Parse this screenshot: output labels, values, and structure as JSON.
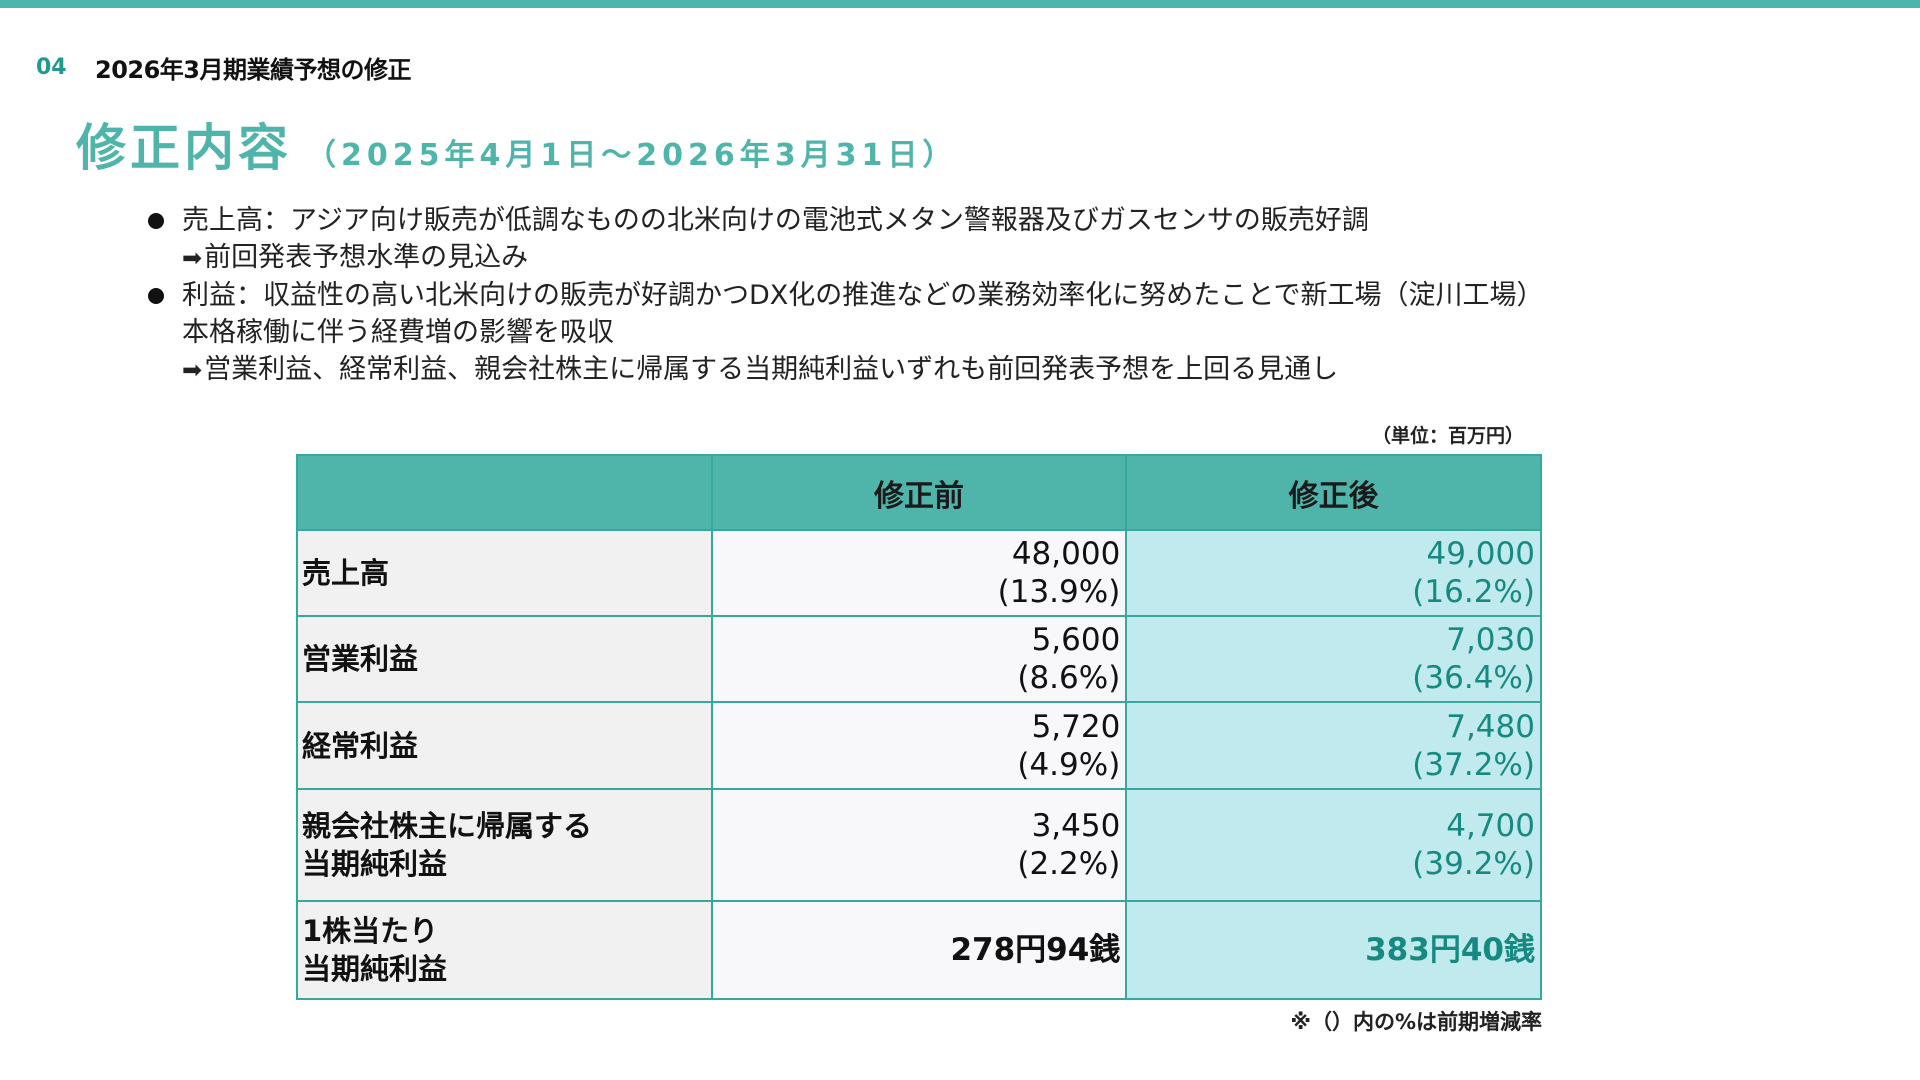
{
  "theme": {
    "accent": "#4db6ac",
    "accent_text": "#1f9a8f",
    "revised_bg": "#c0eaee",
    "revised_text": "#168a80"
  },
  "section": {
    "number": "04",
    "title": "2026年3月期業績予想の修正"
  },
  "heading": {
    "main": "修正内容",
    "period": "（2025年4月1日～2026年3月31日）"
  },
  "bullets": [
    {
      "icon": "bullet-dot",
      "lines": [
        "売上高：アジア向け販売が低調なものの北米向けの電池式メタン警報器及びガスセンサの販売好調"
      ],
      "result_arrow": "➡",
      "result": "前回発表予想水準の見込み"
    },
    {
      "icon": "bullet-dot",
      "lines": [
        "利益：収益性の高い北米向けの販売が好調かつDX化の推進などの業務効率化に努めたことで新工場（淀川工場）",
        "本格稼働に伴う経費増の影響を吸収"
      ],
      "result_arrow": "➡",
      "result": "営業利益、経常利益、親会社株主に帰属する当期純利益いずれも前回発表予想を上回る見通し"
    }
  ],
  "table": {
    "unit": "（単位：百万円）",
    "headers": [
      "",
      "修正前",
      "修正後"
    ],
    "rows": [
      {
        "label": [
          "売上高"
        ],
        "before": {
          "value": "48,000",
          "change": "(13.9%)"
        },
        "after": {
          "value": "49,000",
          "change": "(16.2%)"
        }
      },
      {
        "label": [
          "営業利益"
        ],
        "before": {
          "value": "5,600",
          "change": "(8.6%)"
        },
        "after": {
          "value": "7,030",
          "change": "(36.4%)"
        }
      },
      {
        "label": [
          "経常利益"
        ],
        "before": {
          "value": "5,720",
          "change": "(4.9%)"
        },
        "after": {
          "value": "7,480",
          "change": "(37.2%)"
        }
      },
      {
        "label": [
          "親会社株主に帰属する",
          "当期純利益"
        ],
        "before": {
          "value": "3,450",
          "change": "(2.2%)"
        },
        "after": {
          "value": "4,700",
          "change": "(39.2%)"
        }
      },
      {
        "label": [
          "1株当たり",
          "当期純利益"
        ],
        "before": {
          "value": "278円94銭"
        },
        "after": {
          "value": "383円40銭"
        }
      }
    ],
    "footnote": "※（）内の%は前期増減率"
  }
}
